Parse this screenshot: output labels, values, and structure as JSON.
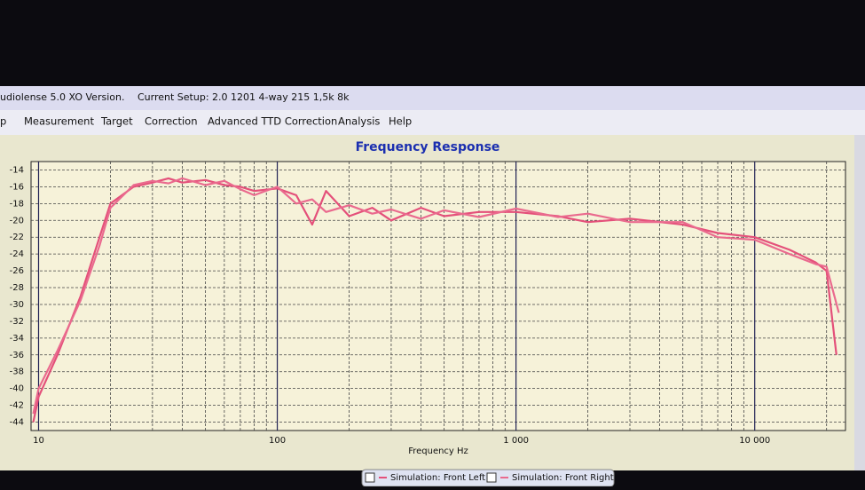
{
  "window": {
    "title": "udiolense 5.0 XO Version.",
    "setup": "Current Setup: 2.0 1201 4-way 215 1,5k 8k"
  },
  "menu": [
    "p",
    "Measurement",
    "Target",
    "Correction",
    "Advanced TTD Correction",
    "Analysis",
    "Help"
  ],
  "chart_data": {
    "type": "line",
    "title": "Frequency Response",
    "x_label": "Frequency Hz",
    "log_x": true,
    "grid": true,
    "xlim": [
      9.3,
      24000
    ],
    "ylim": [
      -45,
      -13
    ],
    "xticks": [
      10,
      100,
      {
        "value": 1000,
        "label": "1 000"
      },
      {
        "value": 10000,
        "label": "10 000"
      }
    ],
    "yticks": [
      -14,
      -16,
      -18,
      -20,
      -22,
      -24,
      -26,
      -28,
      -30,
      -32,
      -34,
      -36,
      -38,
      -40,
      -42,
      -44
    ],
    "series": [
      {
        "name": "Simulation: Front Left",
        "color": "#e4507a",
        "x": [
          9.5,
          10,
          12,
          15,
          18,
          20,
          25,
          30,
          35,
          40,
          50,
          60,
          70,
          80,
          100,
          120,
          140,
          160,
          200,
          250,
          300,
          400,
          500,
          700,
          1000,
          1500,
          2000,
          3000,
          5000,
          7000,
          10000,
          14000,
          18000,
          20000,
          22000
        ],
        "values": [
          -44,
          -41,
          -36,
          -29,
          -22,
          -18,
          -16,
          -15.5,
          -15,
          -15.5,
          -15.2,
          -15.8,
          -16,
          -16.5,
          -16.2,
          -17,
          -20.5,
          -16.5,
          -19.5,
          -18.5,
          -20,
          -18.5,
          -19.5,
          -19,
          -19,
          -19.5,
          -20.2,
          -19.8,
          -20.5,
          -21.5,
          -22,
          -23.5,
          -25,
          -26,
          -36
        ]
      },
      {
        "name": "Simulation: Front Right",
        "color": "#ea6a8e",
        "x": [
          9.5,
          10,
          12,
          15,
          18,
          20,
          25,
          30,
          35,
          40,
          50,
          60,
          70,
          80,
          100,
          120,
          140,
          160,
          200,
          250,
          300,
          400,
          500,
          700,
          1000,
          1500,
          2000,
          3000,
          5000,
          7000,
          10000,
          14000,
          18000,
          20000,
          22500
        ],
        "values": [
          -43,
          -40,
          -35.5,
          -29.5,
          -23,
          -18.5,
          -15.8,
          -15.3,
          -15.6,
          -15,
          -15.8,
          -15.3,
          -16.3,
          -17,
          -16,
          -18,
          -17.5,
          -19,
          -18.2,
          -19.2,
          -18.7,
          -19.8,
          -18.8,
          -19.6,
          -18.6,
          -19.6,
          -19.2,
          -20.2,
          -20.2,
          -22,
          -22.3,
          -24,
          -25.2,
          -25.5,
          -31
        ]
      }
    ]
  }
}
